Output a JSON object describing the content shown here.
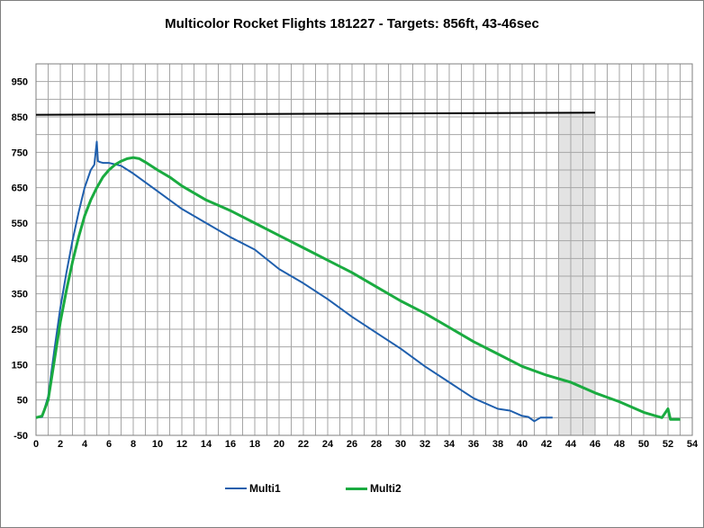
{
  "chart_data": {
    "type": "line",
    "title": "Multicolor Rocket Flights 181227 - Targets: 856ft, 43-46sec",
    "xlabel": "",
    "ylabel": "",
    "xlim": [
      0,
      54
    ],
    "ylim": [
      -50,
      1000
    ],
    "x_ticks": [
      0,
      2,
      4,
      6,
      8,
      10,
      12,
      14,
      16,
      18,
      20,
      22,
      24,
      26,
      28,
      30,
      32,
      34,
      36,
      38,
      40,
      42,
      44,
      46,
      48,
      50,
      52,
      54
    ],
    "y_ticks": [
      -50,
      50,
      150,
      250,
      350,
      450,
      550,
      650,
      750,
      850,
      950
    ],
    "grid": true,
    "legend_position": "bottom",
    "target_altitude": 856,
    "target_line": {
      "x": [
        0,
        46
      ],
      "y": [
        856,
        862
      ]
    },
    "target_time_window": [
      43,
      46
    ],
    "series": [
      {
        "name": "Multi1",
        "color": "#1f5fad",
        "x": [
          0,
          0.5,
          1,
          1.5,
          2,
          2.5,
          3,
          3.5,
          4,
          4.5,
          4.8,
          5.0,
          5.1,
          5.3,
          5.5,
          6,
          7,
          8,
          10,
          12,
          14,
          16,
          18,
          20,
          22,
          24,
          26,
          28,
          30,
          32,
          34,
          36,
          38,
          39,
          40,
          40.5,
          41,
          41.5,
          42,
          42.5
        ],
        "y": [
          0,
          2,
          60,
          190,
          310,
          410,
          500,
          580,
          650,
          700,
          715,
          780,
          725,
          722,
          720,
          720,
          712,
          690,
          640,
          590,
          550,
          510,
          475,
          420,
          380,
          335,
          285,
          240,
          195,
          145,
          100,
          55,
          25,
          20,
          5,
          2,
          -10,
          0,
          0,
          0
        ]
      },
      {
        "name": "Multi2",
        "color": "#1aab40",
        "x": [
          0,
          0.5,
          1,
          1.5,
          2,
          2.5,
          3,
          3.5,
          4,
          4.5,
          5,
          5.5,
          6,
          6.5,
          7,
          7.5,
          8,
          8.5,
          9,
          10,
          11,
          12,
          14,
          16,
          18,
          20,
          22,
          24,
          26,
          28,
          30,
          32,
          34,
          36,
          38,
          40,
          42,
          44,
          46,
          48,
          50,
          51,
          51.5,
          52,
          52.2,
          52.5,
          53
        ],
        "y": [
          0,
          5,
          50,
          160,
          270,
          360,
          440,
          510,
          570,
          615,
          650,
          680,
          700,
          715,
          725,
          732,
          735,
          732,
          722,
          700,
          680,
          655,
          615,
          585,
          550,
          515,
          480,
          445,
          410,
          370,
          330,
          295,
          255,
          215,
          180,
          145,
          120,
          100,
          70,
          45,
          15,
          5,
          0,
          25,
          -5,
          -5,
          -5
        ]
      }
    ]
  }
}
